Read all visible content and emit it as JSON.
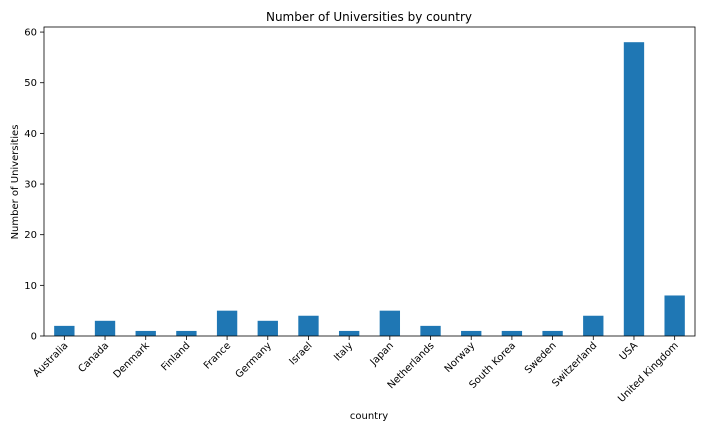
{
  "chart_data": {
    "type": "bar",
    "title": "Number of Universities by country",
    "xlabel": "country",
    "ylabel": "Number of Universities",
    "categories": [
      "Australia",
      "Canada",
      "Denmark",
      "Finland",
      "France",
      "Germany",
      "Israel",
      "Italy",
      "Japan",
      "Netherlands",
      "Norway",
      "South Korea",
      "Sweden",
      "Switzerland",
      "USA",
      "United Kingdom"
    ],
    "values": [
      2,
      3,
      1,
      1,
      5,
      3,
      4,
      1,
      5,
      2,
      1,
      1,
      1,
      4,
      58,
      8
    ],
    "ylim": [
      0,
      61
    ],
    "yticks": [
      0,
      10,
      20,
      30,
      40,
      50,
      60
    ],
    "grid": false,
    "bar_color": "#1f77b4"
  }
}
